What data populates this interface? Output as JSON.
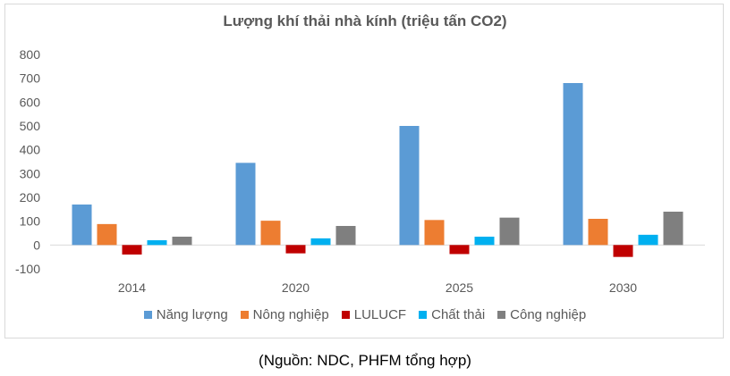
{
  "chart_data": {
    "type": "bar",
    "title": "Lượng khí thải nhà kính (triệu tấn CO2)",
    "categories": [
      "2014",
      "2020",
      "2025",
      "2030"
    ],
    "ylim": [
      -100,
      800
    ],
    "yticks": [
      -100,
      0,
      100,
      200,
      300,
      400,
      500,
      600,
      700,
      800
    ],
    "ytick_labels": [
      "-100",
      "0",
      "100",
      "200",
      "300",
      "400",
      "500",
      "600",
      "700",
      "800"
    ],
    "grid": false,
    "legend_position": "bottom",
    "series": [
      {
        "name": "Năng lượng",
        "color": "#5b9bd5",
        "values": [
          170,
          345,
          500,
          680
        ]
      },
      {
        "name": "Nông nghiệp",
        "color": "#ed7d31",
        "values": [
          88,
          102,
          105,
          110
        ]
      },
      {
        "name": "LULUCF",
        "color": "#c00000",
        "values": [
          -40,
          -35,
          -38,
          -50
        ]
      },
      {
        "name": "Chất thải",
        "color": "#00b0f0",
        "values": [
          20,
          28,
          35,
          43
        ]
      },
      {
        "name": "Công nghiệp",
        "color": "#7f7f7f",
        "values": [
          35,
          80,
          115,
          140
        ]
      }
    ]
  },
  "footer": {
    "source": "(Nguồn: NDC, PHFM tổng hợp)"
  }
}
